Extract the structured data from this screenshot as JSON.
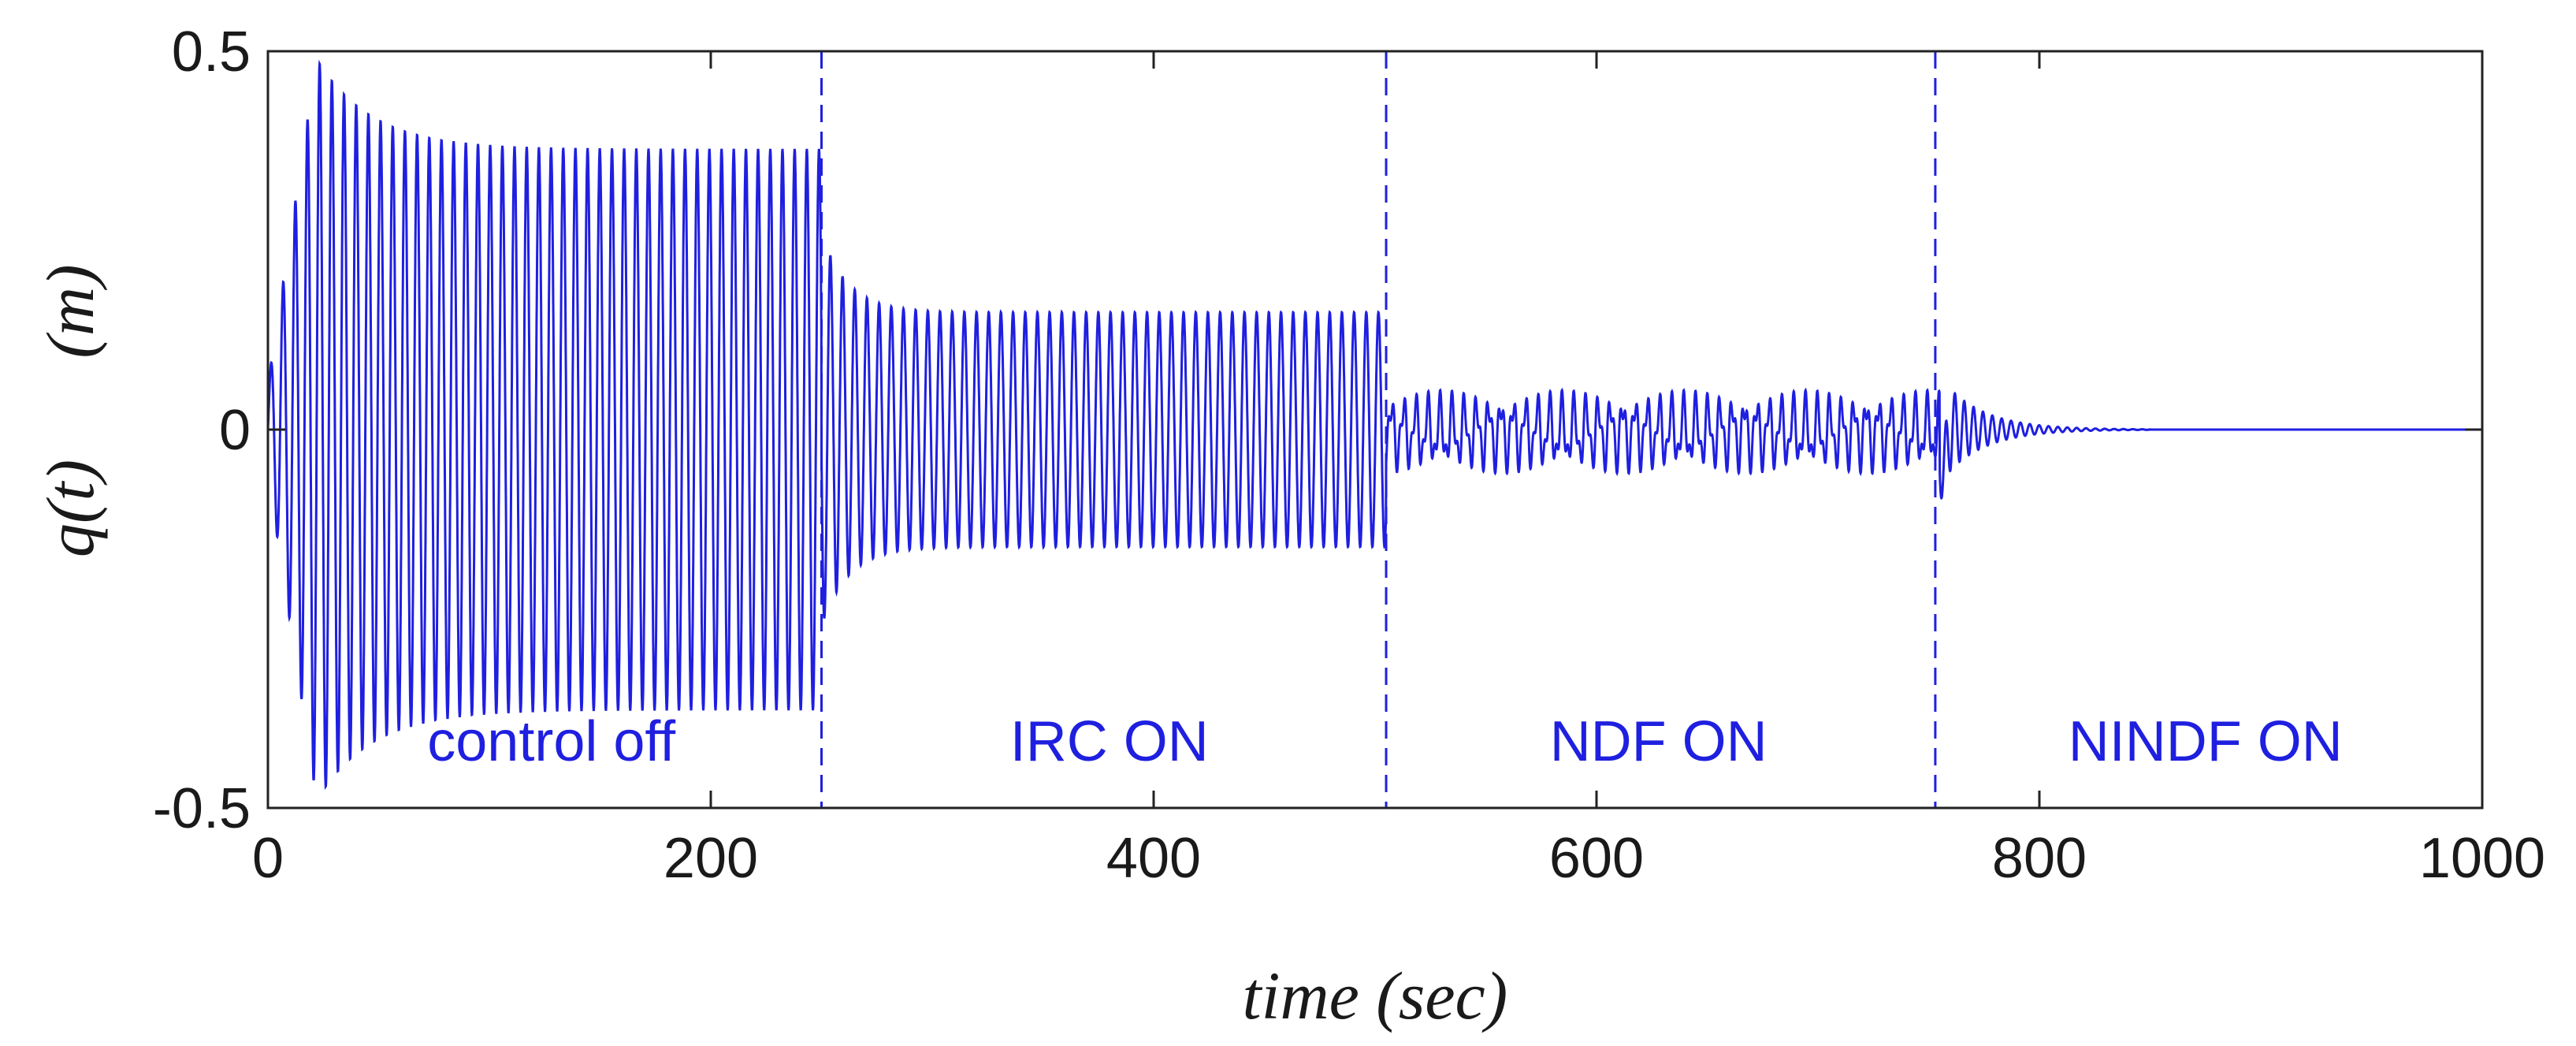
{
  "chart_data": {
    "type": "line",
    "title": "",
    "xlabel": "time (sec)",
    "ylabel_parts": [
      "q(t)",
      "(m)"
    ],
    "xlim": [
      0,
      1000
    ],
    "ylim": [
      -0.5,
      0.5
    ],
    "xticks": [
      0,
      200,
      400,
      600,
      800,
      1000
    ],
    "xtick_labels": [
      "0",
      "200",
      "400",
      "600",
      "800",
      "1000"
    ],
    "yticks": [
      0.5,
      0,
      -0.5
    ],
    "ytick_labels": [
      "0.5",
      "0",
      "-0.5"
    ],
    "grid": false,
    "line_color": "#1f1fe0",
    "period_sec": 5.5,
    "series": [
      {
        "segments": [
          {
            "x_start": 0,
            "x_end": 250,
            "amp_start": 0.06,
            "amp_peak": 0.49,
            "amp_steady": 0.37
          },
          {
            "x_start": 250,
            "x_end": 505,
            "amp_start": 0.26,
            "amp_steady": 0.155
          },
          {
            "x_start": 505,
            "x_end": 755,
            "amp_steady": 0.05,
            "irregular": true
          },
          {
            "x_start": 755,
            "x_end": 1000,
            "amp_start": 0.07,
            "decay_to_zero_by": 850
          }
        ]
      }
    ],
    "switch_times": [
      250,
      505,
      753
    ],
    "annotations": [
      {
        "text": "control off",
        "x": 128
      },
      {
        "text": "IRC ON",
        "x": 380
      },
      {
        "text": "NDF ON",
        "x": 628
      },
      {
        "text": "NINDF ON",
        "x": 875
      }
    ]
  }
}
